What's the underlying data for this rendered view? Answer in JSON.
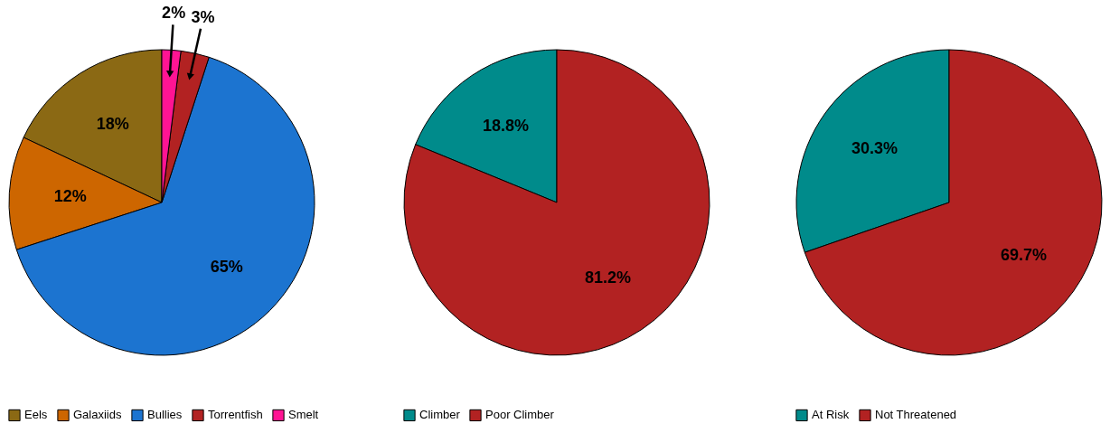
{
  "chart_data": [
    {
      "type": "pie",
      "categories": [
        "Eels",
        "Galaxiids",
        "Bullies",
        "Torrentfish",
        "Smelt"
      ],
      "values": [
        18,
        12,
        65,
        3,
        2
      ],
      "colors": [
        "#8b6914",
        "#cd6600",
        "#1c74d0",
        "#b22222",
        "#ff1493"
      ],
      "value_labels": [
        "18%",
        "12%",
        "65%",
        "3%",
        "2%"
      ],
      "legend": "bottom"
    },
    {
      "type": "pie",
      "categories": [
        "Climber",
        "Poor Climber"
      ],
      "values": [
        18.8,
        81.2
      ],
      "colors": [
        "#008b8b",
        "#b22222"
      ],
      "value_labels": [
        "18.8%",
        "81.2%"
      ],
      "legend": "bottom"
    },
    {
      "type": "pie",
      "categories": [
        "At Risk",
        "Not Threatened"
      ],
      "values": [
        30.3,
        69.7
      ],
      "colors": [
        "#008b8b",
        "#b22222"
      ],
      "value_labels": [
        "30.3%",
        "69.7%"
      ],
      "legend": "bottom"
    }
  ]
}
